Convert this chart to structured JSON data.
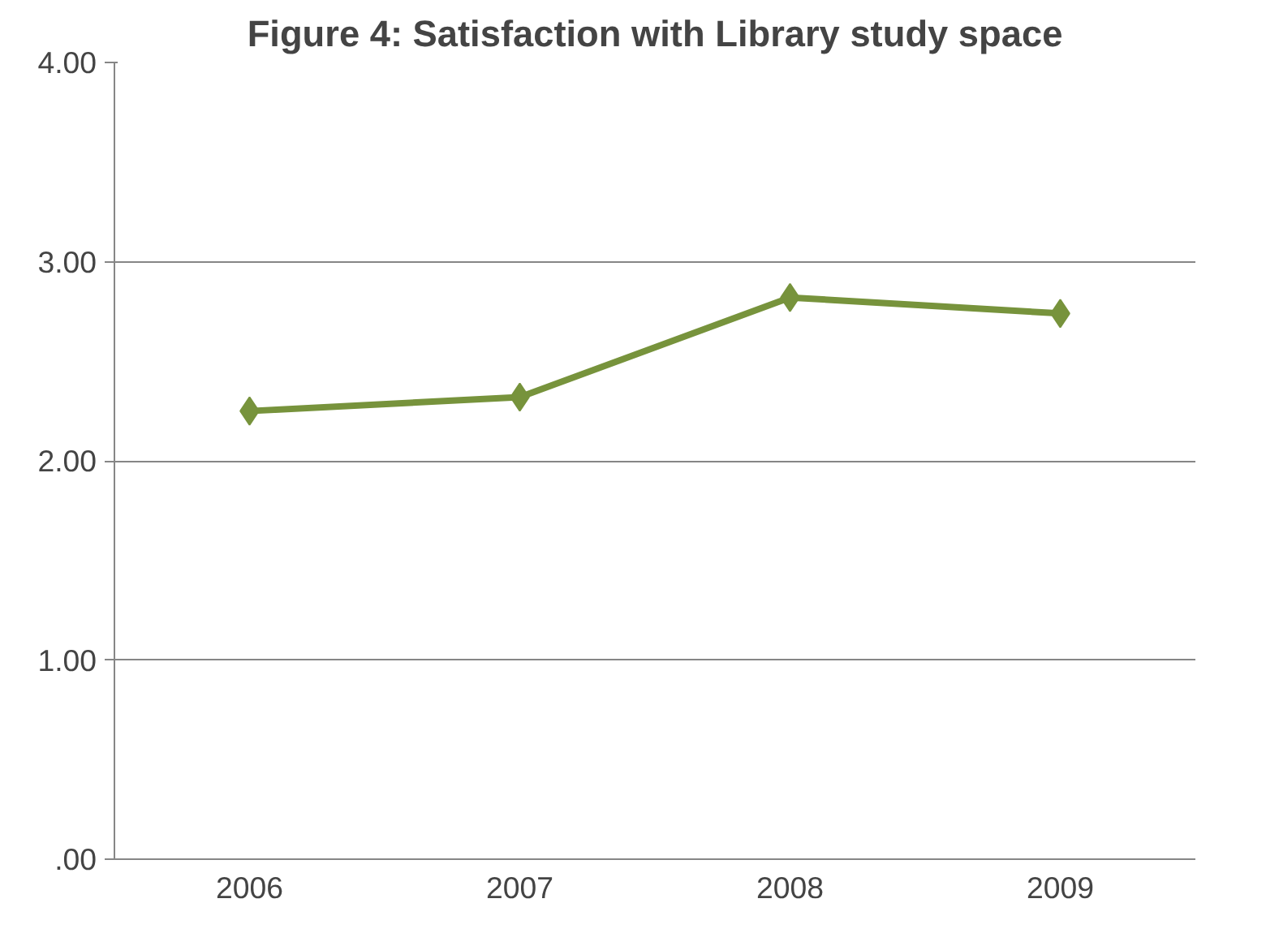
{
  "chart_data": {
    "type": "line",
    "title": "Figure 4: Satisfaction with Library study space",
    "categories": [
      "2006",
      "2007",
      "2008",
      "2009"
    ],
    "series": [
      {
        "color": "#77933c",
        "values": [
          2.25,
          2.32,
          2.82,
          2.74
        ]
      }
    ],
    "ylim": [
      0,
      4
    ],
    "yticks": [
      {
        "value": 0,
        "label": ".00"
      },
      {
        "value": 1,
        "label": "1.00"
      },
      {
        "value": 2,
        "label": "2.00"
      },
      {
        "value": 3,
        "label": "3.00"
      },
      {
        "value": 4,
        "label": "4.00"
      }
    ],
    "grid": "y",
    "marker": "diamond",
    "line_style": "solid"
  }
}
